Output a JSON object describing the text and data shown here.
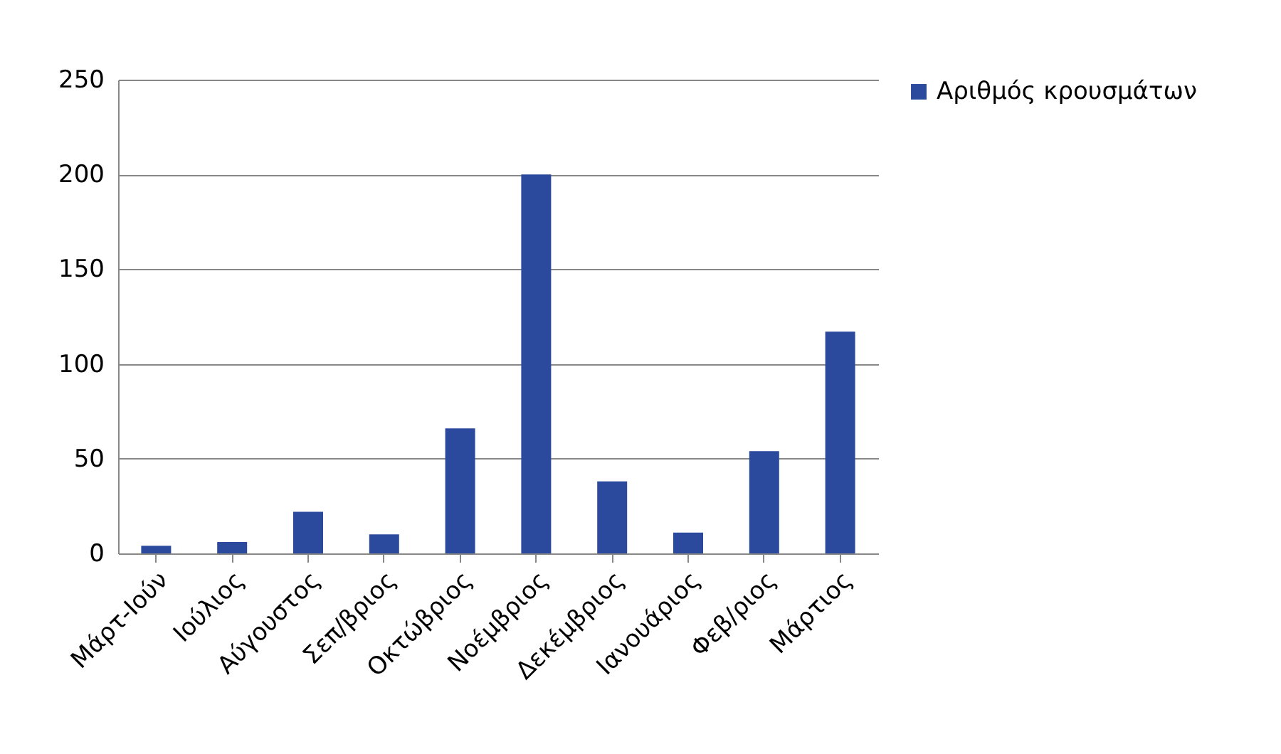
{
  "chart_data": {
    "type": "bar",
    "categories": [
      "Μάρτ-Ιούν",
      "Ιούλιος",
      "Αύγουστος",
      "Σεπ/βριος",
      "Οκτώβριος",
      "Νοέμβριος",
      "Δεκέμβριος",
      "Ιανουάριος",
      "Φεβ/ριος",
      "Μάρτιος"
    ],
    "series": [
      {
        "name": "Αριθμός κρουσμάτων",
        "color": "#2b4a9e",
        "values": [
          4,
          6,
          22,
          10,
          66,
          200,
          38,
          11,
          54,
          117
        ]
      }
    ],
    "ylim": [
      0,
      250
    ],
    "yticks": [
      0,
      50,
      100,
      150,
      200,
      250
    ],
    "grid": "y",
    "legend": "right"
  }
}
